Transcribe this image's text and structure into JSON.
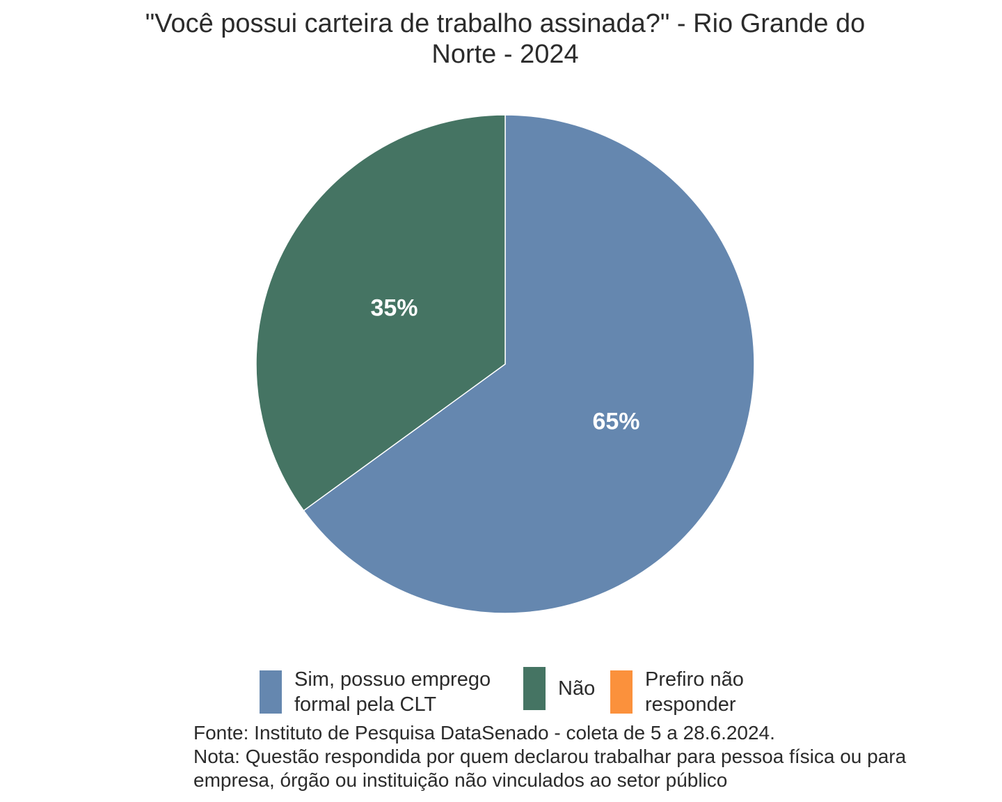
{
  "chart_data": {
    "type": "pie",
    "title": "\"Você possui carteira de trabalho assinada?\" - Rio Grande do Norte - 2024",
    "title_lines": [
      "\"Você possui carteira de trabalho assinada?\" - Rio Grande do",
      "Norte - 2024"
    ],
    "categories": [
      "Sim, possuo emprego formal pela CLT",
      "Não",
      "Prefiro não responder"
    ],
    "legend_lines": [
      [
        "Sim, possuo emprego",
        "formal pela CLT"
      ],
      [
        "Não"
      ],
      [
        "Prefiro não",
        "responder"
      ]
    ],
    "values": [
      65,
      35,
      0
    ],
    "labels": [
      "65%",
      "35%",
      ""
    ],
    "colors": [
      "#6587AF",
      "#457463",
      "#FB913C"
    ],
    "start": "top",
    "direction": "clockwise",
    "legend_position": "bottom",
    "caption": [
      "Fonte: Instituto de Pesquisa DataSenado - coleta de 5 a 28.6.2024.",
      "Nota: Questão respondida por quem declarou trabalhar para pessoa física ou para",
      "empresa, órgão ou instituição não vinculados ao setor público"
    ]
  }
}
